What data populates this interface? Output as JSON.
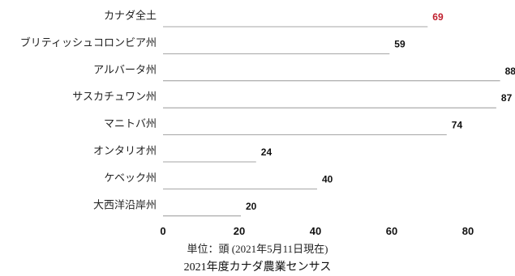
{
  "chart_data": {
    "type": "bar",
    "categories": [
      "カナダ全土",
      "ブリティッシュコロンビア州",
      "アルバータ州",
      "サスカチュワン州",
      "マニトバ州",
      "オンタリオ州",
      "ケベック州",
      "大西洋沿岸州"
    ],
    "values": [
      69,
      59,
      88,
      87,
      74,
      24,
      40,
      20
    ],
    "highlight_index": 0,
    "units_per_icon": 10,
    "xlim": [
      0,
      90
    ],
    "xticks": [
      0,
      20,
      40,
      60,
      80
    ],
    "orientation": "horizontal",
    "marker": "cow-icon",
    "unit_note": "単位：頭 (2021年5月11日現在)",
    "source": "2021年度カナダ農業センサス",
    "colors": {
      "highlight": "#c0202e",
      "default": "#1a1a1a",
      "rule": "#888888"
    }
  }
}
